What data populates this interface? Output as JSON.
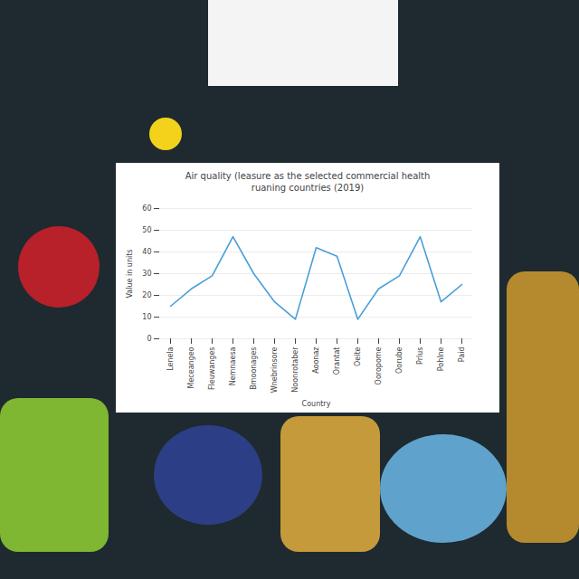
{
  "chart_data": {
    "type": "line",
    "title": "Air quality (leasure as the selected commercial health ruaning countries (2019)",
    "x_label": "Country",
    "y_label": "Value in units",
    "categories": [
      "Lenela",
      "Meceangeo",
      "Fleuwanges",
      "Nemnaesa",
      "Bmoonages",
      "Wnebrinsore",
      "Noonrotaber",
      "Aoonaz",
      "Orantat",
      "Oeite",
      "Ooropome",
      "Oorube",
      "Prlus",
      "Pohlne",
      "Paid"
    ],
    "values": [
      15,
      23,
      29,
      47,
      30,
      17,
      9,
      42,
      38,
      9,
      23,
      29,
      47,
      17,
      25
    ],
    "color": "#4a9fd8",
    "ylim": [
      0,
      60
    ],
    "yticks": [
      0,
      10,
      20,
      30,
      40,
      50,
      60
    ],
    "grid": true
  }
}
